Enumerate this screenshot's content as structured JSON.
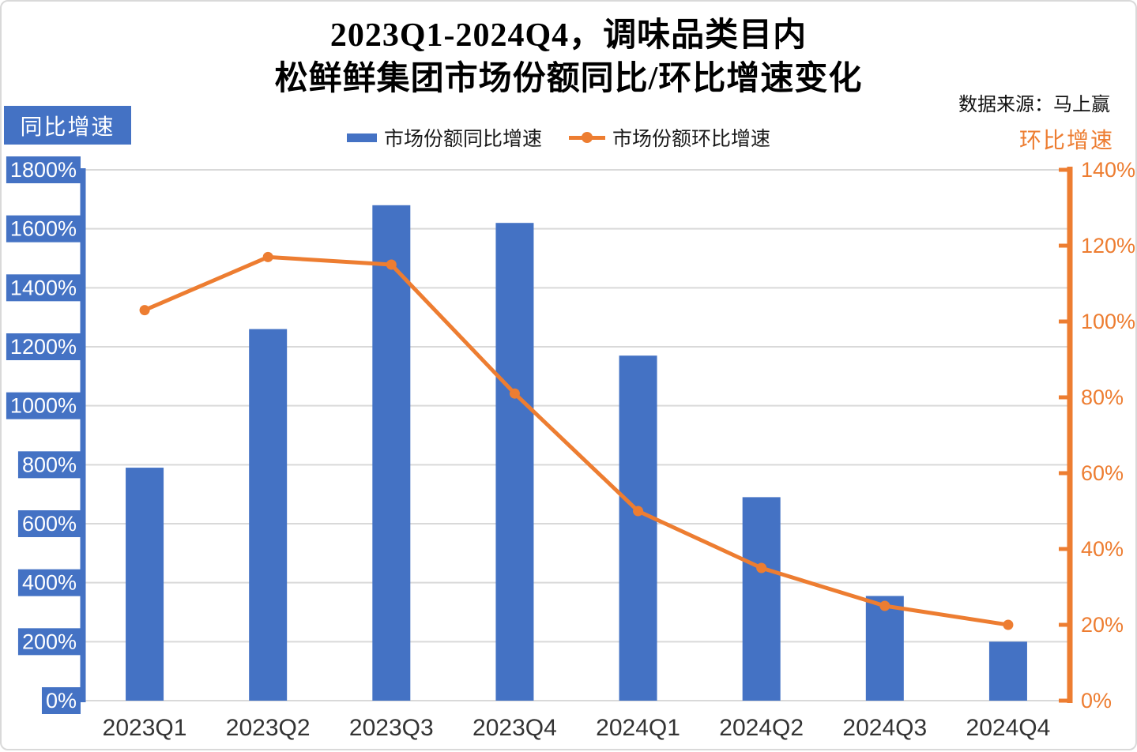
{
  "header": {
    "title_line1": "2023Q1-2024Q4，调味品类目内",
    "title_line2": "松鲜鲜集团市场份额同比/环比增速变化",
    "source": "数据来源：马上赢"
  },
  "axes": {
    "left_title": "同比增速",
    "right_title": "环比增速"
  },
  "legend": [
    {
      "label": "市场份额同比增速",
      "type": "bar",
      "color": "#4472C4"
    },
    {
      "label": "市场份额环比增速",
      "type": "line",
      "color": "#ED7D31"
    }
  ],
  "colors": {
    "bar": "#4472C4",
    "line": "#ED7D31",
    "grid": "#D9D9D9",
    "x_label": "#333333",
    "left_tick_text": "#ffffff",
    "left_tick_bg": "#4472C4",
    "right_tick_text": "#ED7D31"
  },
  "chart_data": {
    "type": "bar",
    "subtype": "dual-axis bar + line",
    "title": "2023Q1-2024Q4，调味品类目内 松鲜鲜集团市场份额同比/环比增速变化",
    "categories": [
      "2023Q1",
      "2023Q2",
      "2023Q3",
      "2023Q4",
      "2024Q1",
      "2024Q2",
      "2024Q3",
      "2024Q4"
    ],
    "series": [
      {
        "name": "市场份额同比增速",
        "type": "bar",
        "axis": "left",
        "unit": "%",
        "values": [
          790,
          1260,
          1680,
          1620,
          1170,
          690,
          355,
          200
        ]
      },
      {
        "name": "市场份额环比增速",
        "type": "line",
        "axis": "right",
        "unit": "%",
        "values": [
          103,
          117,
          115,
          81,
          50,
          35,
          25,
          20
        ]
      }
    ],
    "left_axis": {
      "label": "同比增速",
      "min": 0,
      "max": 1800,
      "step": 200,
      "tick_suffix": "%"
    },
    "right_axis": {
      "label": "环比增速",
      "min": 0,
      "max": 140,
      "step": 20,
      "tick_suffix": "%"
    },
    "grid": true,
    "legend_position": "top"
  }
}
